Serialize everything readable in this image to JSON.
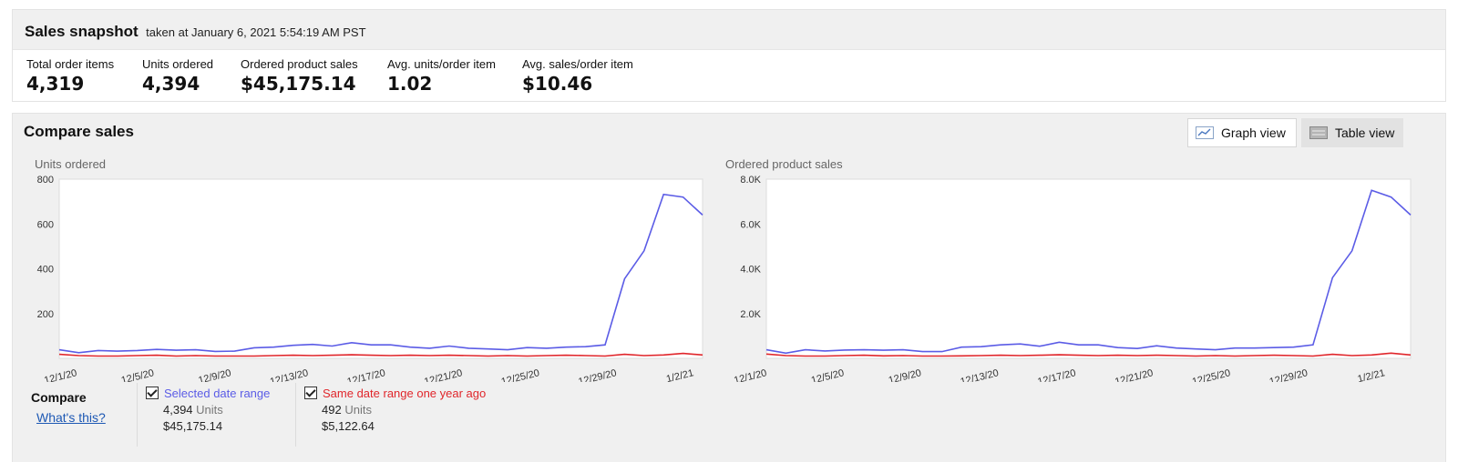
{
  "snapshot": {
    "title": "Sales snapshot",
    "subtitle": "taken at January 6, 2021 5:54:19 AM PST",
    "metrics": [
      {
        "label": "Total order items",
        "value": "4,319"
      },
      {
        "label": "Units ordered",
        "value": "4,394"
      },
      {
        "label": "Ordered product sales",
        "value": "$45,175.14"
      },
      {
        "label": "Avg. units/order item",
        "value": "1.02"
      },
      {
        "label": "Avg. sales/order item",
        "value": "$10.46"
      }
    ]
  },
  "compare": {
    "title": "Compare sales",
    "graph_view_label": "Graph view",
    "table_view_label": "Table view",
    "active_view": "graph",
    "legend": {
      "compare_label": "Compare",
      "whats_this": "What's this?",
      "selected": {
        "label": "Selected date range",
        "units_value": "4,394",
        "units_word": "Units",
        "sales": "$45,175.14",
        "color": "#5b5ce6",
        "checked": true
      },
      "previous": {
        "label": "Same date range one year ago",
        "units_value": "492",
        "units_word": "Units",
        "sales": "$5,122.64",
        "color": "#e0262b",
        "checked": true
      }
    }
  },
  "chart_data": [
    {
      "type": "line",
      "title": "Units ordered",
      "x_ticks": [
        "12/1/20",
        "12/5/20",
        "12/9/20",
        "12/13/20",
        "12/17/20",
        "12/21/20",
        "12/25/20",
        "12/29/20",
        "1/2/21"
      ],
      "y_ticks": [
        "200",
        "400",
        "600",
        "800"
      ],
      "ylim": [
        0,
        800
      ],
      "grid": false,
      "x_start": "2020-12-01",
      "x_end": "2021-01-05",
      "series": [
        {
          "name": "Selected date range",
          "color": "#5b5ce6",
          "values": [
            38,
            25,
            35,
            32,
            35,
            40,
            36,
            38,
            31,
            32,
            47,
            50,
            58,
            62,
            55,
            70,
            60,
            60,
            50,
            45,
            55,
            45,
            42,
            38,
            48,
            45,
            50,
            52,
            60,
            355,
            480,
            732,
            720,
            640
          ]
        },
        {
          "name": "Same date range one year ago",
          "color": "#e0262b",
          "values": [
            18,
            12,
            10,
            10,
            12,
            14,
            10,
            12,
            10,
            10,
            10,
            12,
            14,
            12,
            14,
            16,
            14,
            12,
            14,
            12,
            14,
            12,
            10,
            12,
            10,
            12,
            14,
            12,
            10,
            18,
            12,
            15,
            22,
            15
          ]
        }
      ]
    },
    {
      "type": "line",
      "title": "Ordered product sales",
      "x_ticks": [
        "12/1/20",
        "12/5/20",
        "12/9/20",
        "12/13/20",
        "12/17/20",
        "12/21/20",
        "12/25/20",
        "12/29/20",
        "1/2/21"
      ],
      "y_ticks": [
        "2.0K",
        "4.0K",
        "6.0K",
        "8.0K"
      ],
      "ylim": [
        0,
        8000
      ],
      "grid": false,
      "x_start": "2020-12-01",
      "x_end": "2021-01-05",
      "series": [
        {
          "name": "Selected date range",
          "color": "#5b5ce6",
          "values": [
            380,
            230,
            380,
            330,
            370,
            380,
            360,
            380,
            300,
            300,
            500,
            520,
            600,
            640,
            540,
            720,
            600,
            600,
            480,
            440,
            560,
            460,
            420,
            380,
            460,
            460,
            480,
            500,
            600,
            3600,
            4800,
            7500,
            7200,
            6400
          ]
        },
        {
          "name": "Same date range one year ago",
          "color": "#e0262b",
          "values": [
            190,
            120,
            100,
            100,
            120,
            140,
            110,
            120,
            100,
            100,
            110,
            120,
            140,
            120,
            140,
            160,
            140,
            120,
            140,
            120,
            140,
            120,
            100,
            120,
            100,
            120,
            140,
            120,
            100,
            180,
            120,
            150,
            230,
            150
          ]
        }
      ]
    }
  ]
}
